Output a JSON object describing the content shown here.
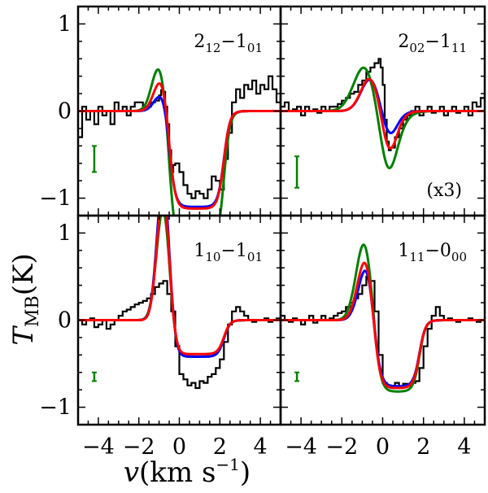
{
  "chart_data": {
    "type": "line",
    "xlabel_var": "v",
    "xlabel_unit": "(km s",
    "xlabel_exp": "−1",
    "xlabel_close": ")",
    "ylabel_var": "T",
    "ylabel_sub": "MB",
    "ylabel_unit": "(K)",
    "xlim": [
      -5.0,
      5.0
    ],
    "ylim": [
      -1.2,
      1.2
    ],
    "xticks": [
      -4,
      -2,
      0,
      2,
      4
    ],
    "xtick_labels": [
      "−4",
      "−2",
      "0",
      "2",
      "4"
    ],
    "yticks": [
      -1,
      0,
      1
    ],
    "ytick_labels": [
      "−1",
      "0",
      "1"
    ],
    "colors": {
      "observed": "#000000",
      "model_blue": "#0000ff",
      "model_green": "#008000",
      "model_red": "#ff0000"
    },
    "panels": [
      {
        "label": {
          "lo": "2",
          "lo_sub": "12",
          "dash": "−",
          "hi": "1",
          "hi_sub": "01"
        },
        "note": "",
        "errorbar": {
          "x": -4.2,
          "y": -0.55,
          "half": 0.15
        },
        "models": {
          "blue": {
            "ep": 0.22,
            "vp": -0.85,
            "sp": 0.35,
            "ea": 1.1,
            "va1": -0.5,
            "va2": 2.2,
            "w": 0.15
          },
          "green": {
            "ep": 0.52,
            "vp": -1.0,
            "sp": 0.35,
            "ea": 1.55,
            "va1": -0.5,
            "va2": 2.2,
            "w": 0.15
          },
          "red": {
            "ep": 0.37,
            "vp": -0.9,
            "sp": 0.35,
            "ea": 1.12,
            "va1": -0.5,
            "va2": 2.2,
            "w": 0.15
          }
        },
        "observed": [
          [
            -5.0,
            -0.3
          ],
          [
            -4.8,
            0.05
          ],
          [
            -4.6,
            -0.1
          ],
          [
            -4.4,
            0.0
          ],
          [
            -4.2,
            -0.15
          ],
          [
            -4.0,
            0.05
          ],
          [
            -3.8,
            -0.05
          ],
          [
            -3.6,
            0.0
          ],
          [
            -3.4,
            -0.15
          ],
          [
            -3.2,
            0.1
          ],
          [
            -3.0,
            0.0
          ],
          [
            -2.8,
            0.05
          ],
          [
            -2.6,
            -0.05
          ],
          [
            -2.4,
            0.05
          ],
          [
            -2.2,
            0.1
          ],
          [
            -2.0,
            0.1
          ],
          [
            -1.8,
            0.05
          ],
          [
            -1.6,
            0.05
          ],
          [
            -1.4,
            0.1
          ],
          [
            -1.2,
            0.12
          ],
          [
            -1.0,
            0.18
          ],
          [
            -0.9,
            0.24
          ],
          [
            -0.8,
            0.22
          ],
          [
            -0.7,
            0.05
          ],
          [
            -0.6,
            -0.15
          ],
          [
            -0.5,
            -0.45
          ],
          [
            -0.4,
            -0.7
          ],
          [
            -0.3,
            -0.62
          ],
          [
            -0.2,
            -0.6
          ],
          [
            0.0,
            -0.7
          ],
          [
            0.2,
            -0.85
          ],
          [
            0.4,
            -0.95
          ],
          [
            0.6,
            -1.0
          ],
          [
            0.8,
            -0.92
          ],
          [
            1.0,
            -0.95
          ],
          [
            1.2,
            -1.0
          ],
          [
            1.4,
            -0.9
          ],
          [
            1.6,
            -0.75
          ],
          [
            1.8,
            -0.8
          ],
          [
            2.0,
            -0.9
          ],
          [
            2.2,
            -0.55
          ],
          [
            2.4,
            -0.25
          ],
          [
            2.6,
            0.1
          ],
          [
            2.8,
            0.25
          ],
          [
            3.0,
            0.15
          ],
          [
            3.2,
            0.3
          ],
          [
            3.4,
            0.25
          ],
          [
            3.6,
            0.35
          ],
          [
            3.8,
            0.2
          ],
          [
            4.0,
            0.3
          ],
          [
            4.2,
            0.25
          ],
          [
            4.4,
            0.4
          ],
          [
            4.6,
            0.25
          ],
          [
            4.8,
            0.1
          ],
          [
            5.0,
            0.2
          ]
        ]
      },
      {
        "label": {
          "lo": "2",
          "lo_sub": "02",
          "dash": "−",
          "hi": "1",
          "hi_sub": "11"
        },
        "note": "(x3)",
        "errorbar": {
          "x": -4.2,
          "y": -0.7,
          "half": 0.18
        },
        "models": {
          "blue": {
            "ep": 0.38,
            "vp": -0.6,
            "sp": 0.45,
            "ea": 0.48,
            "va1": 0.05,
            "va2": 0.6,
            "w": 0.22
          },
          "green": {
            "ep": 0.55,
            "vp": -0.85,
            "sp": 0.55,
            "ea": 1.35,
            "va1": 0.0,
            "va2": 0.55,
            "w": 0.28
          },
          "red": {
            "ep": 0.4,
            "vp": -0.6,
            "sp": 0.45,
            "ea": 0.78,
            "va1": 0.05,
            "va2": 0.6,
            "w": 0.22
          }
        },
        "observed": [
          [
            -5.0,
            0.05
          ],
          [
            -4.8,
            0.1
          ],
          [
            -4.6,
            0.0
          ],
          [
            -4.4,
            0.02
          ],
          [
            -4.2,
            0.05
          ],
          [
            -4.0,
            -0.05
          ],
          [
            -3.8,
            0.05
          ],
          [
            -3.6,
            0.0
          ],
          [
            -3.4,
            0.02
          ],
          [
            -3.2,
            -0.02
          ],
          [
            -3.0,
            0.05
          ],
          [
            -2.8,
            0.0
          ],
          [
            -2.6,
            0.05
          ],
          [
            -2.4,
            0.05
          ],
          [
            -2.2,
            0.08
          ],
          [
            -2.0,
            0.12
          ],
          [
            -1.8,
            0.15
          ],
          [
            -1.6,
            0.2
          ],
          [
            -1.4,
            0.22
          ],
          [
            -1.2,
            0.3
          ],
          [
            -1.0,
            0.35
          ],
          [
            -0.8,
            0.45
          ],
          [
            -0.6,
            0.5
          ],
          [
            -0.4,
            0.55
          ],
          [
            -0.2,
            0.6
          ],
          [
            -0.1,
            0.5
          ],
          [
            0.0,
            0.3
          ],
          [
            0.1,
            -0.1
          ],
          [
            0.2,
            -0.35
          ],
          [
            0.3,
            -0.45
          ],
          [
            0.4,
            -0.42
          ],
          [
            0.6,
            -0.3
          ],
          [
            0.8,
            -0.2
          ],
          [
            1.0,
            -0.1
          ],
          [
            1.2,
            -0.05
          ],
          [
            1.4,
            0.0
          ],
          [
            1.6,
            0.05
          ],
          [
            1.8,
            -0.05
          ],
          [
            2.0,
            0.0
          ],
          [
            2.2,
            0.05
          ],
          [
            2.4,
            -0.02
          ],
          [
            2.6,
            0.0
          ],
          [
            2.8,
            0.05
          ],
          [
            3.0,
            -0.05
          ],
          [
            3.2,
            0.0
          ],
          [
            3.4,
            0.05
          ],
          [
            3.6,
            -0.02
          ],
          [
            3.8,
            0.0
          ],
          [
            4.0,
            0.05
          ],
          [
            4.2,
            -0.05
          ],
          [
            4.4,
            0.1
          ],
          [
            4.6,
            0.05
          ],
          [
            4.8,
            0.15
          ],
          [
            5.0,
            0.1
          ]
        ]
      },
      {
        "label": {
          "lo": "1",
          "lo_sub": "10",
          "dash": "−",
          "hi": "1",
          "hi_sub": "01"
        },
        "note": "",
        "errorbar": {
          "x": -4.2,
          "y": -0.65,
          "half": 0.05
        },
        "models": {
          "blue": {
            "ep": 1.62,
            "vp": -0.8,
            "sp": 0.3,
            "ea": 0.42,
            "va1": -0.45,
            "va2": 2.2,
            "w": 0.15
          },
          "green": {
            "ep": 1.3,
            "vp": -0.8,
            "sp": 0.32,
            "ea": 0.42,
            "va1": -0.45,
            "va2": 2.2,
            "w": 0.15
          },
          "red": {
            "ep": 1.48,
            "vp": -0.8,
            "sp": 0.3,
            "ea": 0.39,
            "va1": -0.45,
            "va2": 2.2,
            "w": 0.15
          }
        },
        "observed": [
          [
            -5.0,
            0.0
          ],
          [
            -4.8,
            -0.05
          ],
          [
            -4.6,
            0.0
          ],
          [
            -4.4,
            0.02
          ],
          [
            -4.2,
            -0.08
          ],
          [
            -4.0,
            -0.05
          ],
          [
            -3.8,
            0.0
          ],
          [
            -3.6,
            -0.1
          ],
          [
            -3.4,
            -0.05
          ],
          [
            -3.2,
            0.0
          ],
          [
            -3.0,
            0.05
          ],
          [
            -2.8,
            0.1
          ],
          [
            -2.6,
            0.12
          ],
          [
            -2.4,
            0.15
          ],
          [
            -2.2,
            0.18
          ],
          [
            -2.0,
            0.2
          ],
          [
            -1.8,
            0.22
          ],
          [
            -1.6,
            0.25
          ],
          [
            -1.4,
            0.3
          ],
          [
            -1.2,
            0.38
          ],
          [
            -1.0,
            0.42
          ],
          [
            -0.8,
            0.45
          ],
          [
            -0.6,
            0.3
          ],
          [
            -0.4,
            0.1
          ],
          [
            -0.2,
            -0.3
          ],
          [
            0.0,
            -0.62
          ],
          [
            0.2,
            -0.68
          ],
          [
            0.4,
            -0.75
          ],
          [
            0.6,
            -0.72
          ],
          [
            0.8,
            -0.78
          ],
          [
            1.0,
            -0.7
          ],
          [
            1.2,
            -0.72
          ],
          [
            1.4,
            -0.65
          ],
          [
            1.6,
            -0.62
          ],
          [
            1.8,
            -0.55
          ],
          [
            2.0,
            -0.45
          ],
          [
            2.2,
            -0.25
          ],
          [
            2.4,
            -0.05
          ],
          [
            2.6,
            0.1
          ],
          [
            2.8,
            0.15
          ],
          [
            3.0,
            0.1
          ],
          [
            3.2,
            0.05
          ],
          [
            3.4,
            0.0
          ],
          [
            3.6,
            -0.02
          ],
          [
            3.8,
            0.0
          ],
          [
            4.0,
            0.0
          ],
          [
            4.2,
            0.02
          ],
          [
            4.4,
            -0.02
          ],
          [
            4.6,
            0.0
          ],
          [
            4.8,
            0.02
          ],
          [
            5.0,
            0.0
          ]
        ]
      },
      {
        "label": {
          "lo": "1",
          "lo_sub": "11",
          "dash": "−",
          "hi": "0",
          "hi_sub": "00"
        },
        "note": "",
        "errorbar": {
          "x": -4.2,
          "y": -0.65,
          "half": 0.05
        },
        "models": {
          "blue": {
            "ep": 0.62,
            "vp": -0.8,
            "sp": 0.38,
            "ea": 0.76,
            "va1": -0.45,
            "va2": 1.8,
            "w": 0.15
          },
          "green": {
            "ep": 0.9,
            "vp": -0.9,
            "sp": 0.4,
            "ea": 0.82,
            "va1": -0.45,
            "va2": 1.8,
            "w": 0.15
          },
          "red": {
            "ep": 0.7,
            "vp": -0.85,
            "sp": 0.38,
            "ea": 0.78,
            "va1": -0.45,
            "va2": 1.8,
            "w": 0.15
          }
        },
        "observed": [
          [
            -5.0,
            0.05
          ],
          [
            -4.8,
            0.0
          ],
          [
            -4.6,
            -0.02
          ],
          [
            -4.4,
            0.02
          ],
          [
            -4.2,
            0.0
          ],
          [
            -4.0,
            -0.05
          ],
          [
            -3.8,
            0.0
          ],
          [
            -3.6,
            0.05
          ],
          [
            -3.4,
            -0.03
          ],
          [
            -3.2,
            0.0
          ],
          [
            -3.0,
            0.05
          ],
          [
            -2.8,
            0.0
          ],
          [
            -2.6,
            0.02
          ],
          [
            -2.4,
            0.05
          ],
          [
            -2.2,
            0.08
          ],
          [
            -2.0,
            0.1
          ],
          [
            -1.8,
            0.15
          ],
          [
            -1.6,
            0.2
          ],
          [
            -1.4,
            0.25
          ],
          [
            -1.2,
            0.3
          ],
          [
            -1.0,
            0.4
          ],
          [
            -0.8,
            0.5
          ],
          [
            -0.6,
            0.45
          ],
          [
            -0.4,
            0.1
          ],
          [
            -0.2,
            -0.4
          ],
          [
            0.0,
            -0.72
          ],
          [
            0.2,
            -0.75
          ],
          [
            0.4,
            -0.78
          ],
          [
            0.6,
            -0.72
          ],
          [
            0.8,
            -0.76
          ],
          [
            1.0,
            -0.73
          ],
          [
            1.2,
            -0.75
          ],
          [
            1.4,
            -0.72
          ],
          [
            1.6,
            -0.7
          ],
          [
            1.8,
            -0.55
          ],
          [
            2.0,
            -0.3
          ],
          [
            2.2,
            -0.1
          ],
          [
            2.4,
            0.05
          ],
          [
            2.6,
            0.15
          ],
          [
            2.8,
            0.05
          ],
          [
            3.0,
            0.0
          ],
          [
            3.2,
            0.02
          ],
          [
            3.4,
            0.0
          ],
          [
            3.6,
            -0.02
          ],
          [
            3.8,
            0.0
          ],
          [
            4.0,
            0.0
          ],
          [
            4.2,
            0.02
          ],
          [
            4.4,
            0.0
          ],
          [
            4.6,
            -0.02
          ],
          [
            4.8,
            0.0
          ],
          [
            5.0,
            0.0
          ]
        ]
      }
    ]
  }
}
